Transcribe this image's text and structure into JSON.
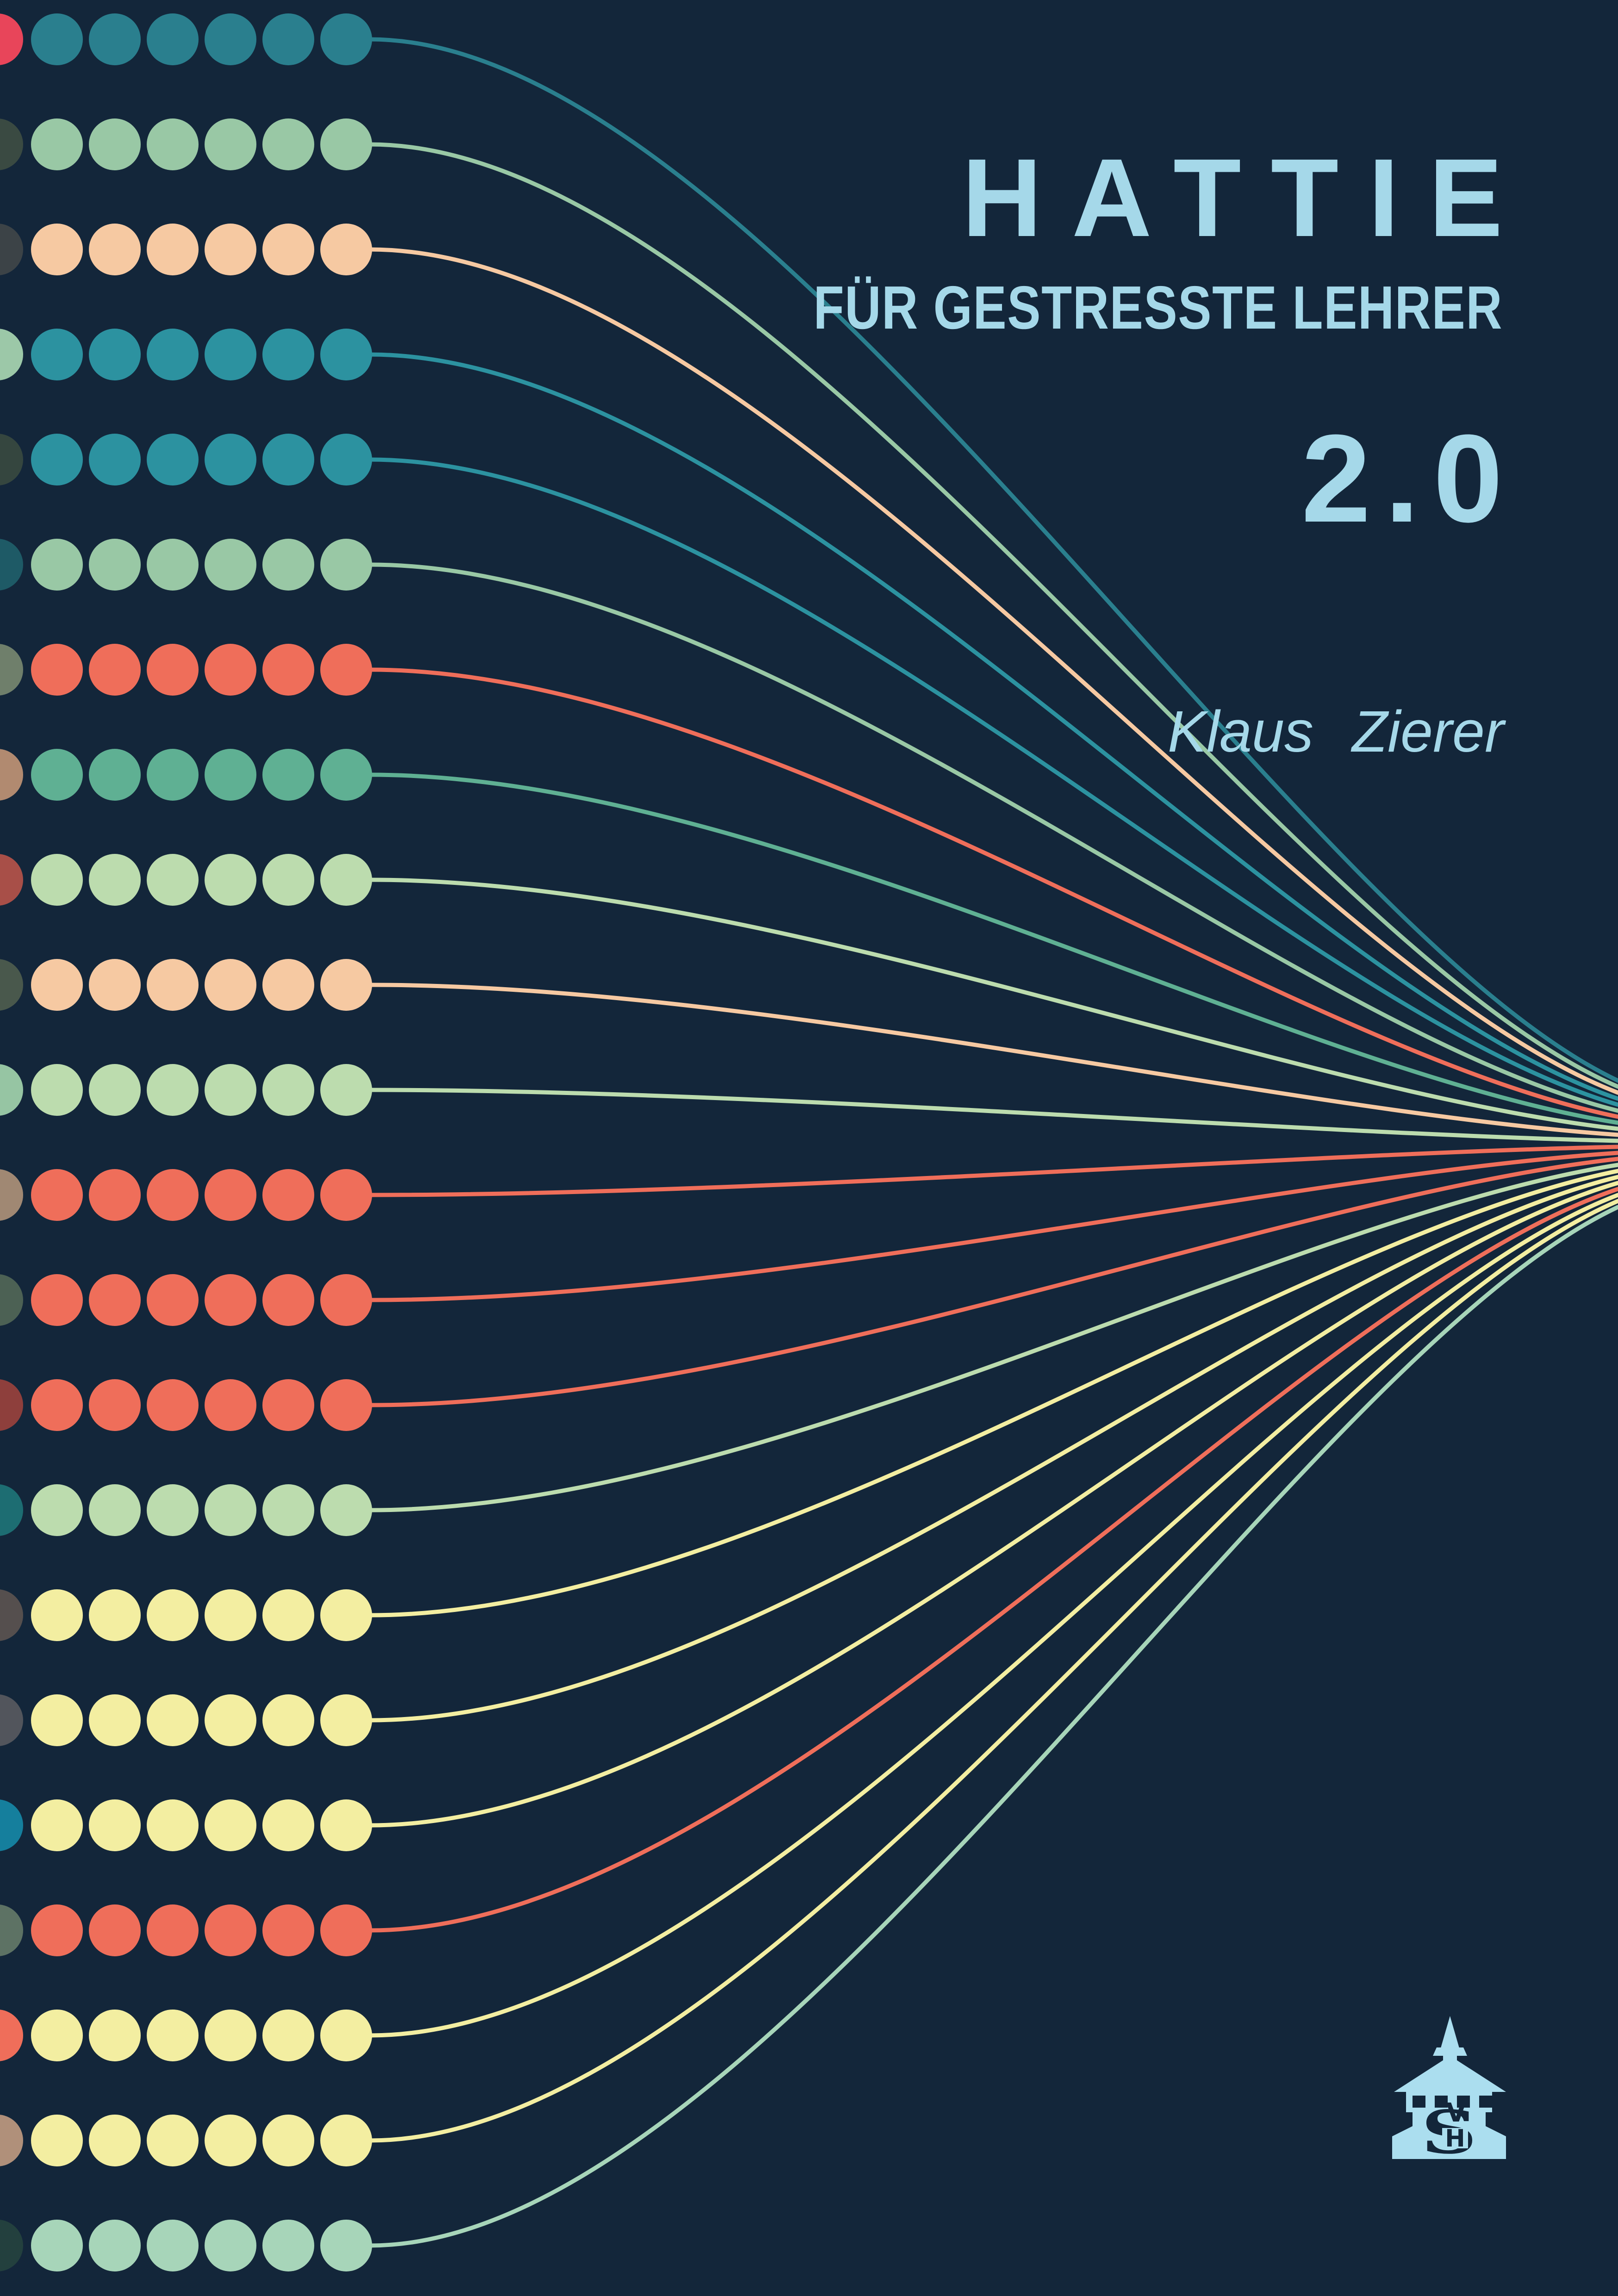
{
  "cover": {
    "title": "HATTIE",
    "subtitle": "FÜR GESTRESSTE LEHRER",
    "edition": "2.0",
    "author": "Klaus Zierer",
    "background_color": "#13263A",
    "text_color": "#A5D8E9"
  },
  "publisher_logo": {
    "icon": "castle-tower-logo",
    "letter_s": "S",
    "letter_v": "V",
    "letter_h": "H",
    "fill_color": "#ABDEEF",
    "knockout_color": "#13263A"
  },
  "artwork": {
    "rows": [
      {
        "name": "row-1",
        "dot_color": "#2A7F8E",
        "edge_color": "#E8455A"
      },
      {
        "name": "row-2",
        "dot_color": "#99C8A5",
        "edge_color": "#3A4A42"
      },
      {
        "name": "row-3",
        "dot_color": "#F6C9A2",
        "edge_color": "#3C4347"
      },
      {
        "name": "row-4",
        "dot_color": "#2C92A0",
        "edge_color": "#9CC8A8"
      },
      {
        "name": "row-5",
        "dot_color": "#2C92A0",
        "edge_color": "#35463F"
      },
      {
        "name": "row-6",
        "dot_color": "#99C8A5",
        "edge_color": "#1E5A66"
      },
      {
        "name": "row-7",
        "dot_color": "#EF6E5A",
        "edge_color": "#6F7F6B"
      },
      {
        "name": "row-8",
        "dot_color": "#5FB093",
        "edge_color": "#B18A70"
      },
      {
        "name": "row-9",
        "dot_color": "#BCDCAE",
        "edge_color": "#A84F48"
      },
      {
        "name": "row-10",
        "dot_color": "#F6C9A2",
        "edge_color": "#49584C"
      },
      {
        "name": "row-11",
        "dot_color": "#BCDCAE",
        "edge_color": "#96C5A3"
      },
      {
        "name": "row-12",
        "dot_color": "#EF6E5A",
        "edge_color": "#A08873"
      },
      {
        "name": "row-13",
        "dot_color": "#EF6E5A",
        "edge_color": "#4C6154"
      },
      {
        "name": "row-14",
        "dot_color": "#EF6E5A",
        "edge_color": "#8E3F3C"
      },
      {
        "name": "row-15",
        "dot_color": "#BCDCAE",
        "edge_color": "#1D6D72"
      },
      {
        "name": "row-16",
        "dot_color": "#F3EEA1",
        "edge_color": "#554F4E"
      },
      {
        "name": "row-17",
        "dot_color": "#F3EEA1",
        "edge_color": "#52555C"
      },
      {
        "name": "row-18",
        "dot_color": "#F3EEA1",
        "edge_color": "#157F9D"
      },
      {
        "name": "row-19",
        "dot_color": "#EF6E5A",
        "edge_color": "#5D7264"
      },
      {
        "name": "row-20",
        "dot_color": "#F3EEA1",
        "edge_color": "#EF6E5A"
      },
      {
        "name": "row-21",
        "dot_color": "#F3EEA1",
        "edge_color": "#B0907A"
      },
      {
        "name": "row-22",
        "dot_color": "#A7D5B9",
        "edge_color": "#23403E"
      }
    ]
  }
}
